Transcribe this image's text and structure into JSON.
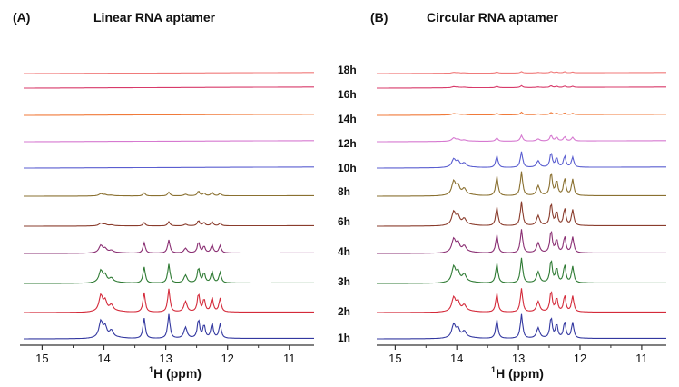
{
  "chart_data": [
    {
      "type": "line",
      "panel_label": "(A)",
      "title": "Linear RNA aptamer",
      "xlabel_sup": "1",
      "xlabel": "H (ppm)",
      "xlim": [
        15.3,
        10.6
      ],
      "xticks": [
        "15",
        "14",
        "13",
        "12",
        "11"
      ],
      "peak_positions_ppm": [
        14.05,
        13.98,
        13.88,
        13.35,
        12.95,
        12.68,
        12.47,
        12.38,
        12.25,
        12.12
      ],
      "series": [
        {
          "name": "1h",
          "color": "#3338a0",
          "peak_heights": [
            0.62,
            0.38,
            0.25,
            0.78,
            0.92,
            0.42,
            0.72,
            0.5,
            0.58,
            0.55
          ]
        },
        {
          "name": "2h",
          "color": "#d42a3a",
          "peak_heights": [
            0.6,
            0.36,
            0.22,
            0.75,
            0.88,
            0.4,
            0.7,
            0.48,
            0.55,
            0.52
          ]
        },
        {
          "name": "3h",
          "color": "#2e7a33",
          "peak_heights": [
            0.45,
            0.25,
            0.15,
            0.62,
            0.72,
            0.3,
            0.58,
            0.38,
            0.42,
            0.4
          ]
        },
        {
          "name": "4h",
          "color": "#8a2f73",
          "peak_heights": [
            0.28,
            0.14,
            0.08,
            0.4,
            0.5,
            0.18,
            0.42,
            0.25,
            0.3,
            0.28
          ]
        },
        {
          "name": "6h",
          "color": "#8a3c2c",
          "peak_heights": [
            0.1,
            0.05,
            0.03,
            0.13,
            0.16,
            0.06,
            0.2,
            0.12,
            0.15,
            0.1
          ]
        },
        {
          "name": "8h",
          "color": "#8a7030",
          "peak_heights": [
            0.08,
            0.04,
            0.02,
            0.12,
            0.14,
            0.06,
            0.18,
            0.1,
            0.13,
            0.09
          ]
        },
        {
          "name": "10h",
          "color": "#5a5ed0",
          "peak_heights": [
            0,
            0,
            0,
            0,
            0,
            0,
            0,
            0,
            0,
            0
          ]
        },
        {
          "name": "12h",
          "color": "#d679d0",
          "peak_heights": [
            0,
            0,
            0,
            0,
            0,
            0,
            0,
            0,
            0,
            0
          ]
        },
        {
          "name": "14h",
          "color": "#f07a3a",
          "peak_heights": [
            0,
            0,
            0,
            0,
            0,
            0,
            0,
            0,
            0,
            0
          ]
        },
        {
          "name": "16h",
          "color": "#d83a6a",
          "peak_heights": [
            0,
            0,
            0,
            0,
            0,
            0,
            0,
            0,
            0,
            0
          ]
        },
        {
          "name": "18h",
          "color": "#f07a7a",
          "peak_heights": [
            0,
            0,
            0,
            0,
            0,
            0,
            0,
            0,
            0,
            0
          ]
        }
      ]
    },
    {
      "type": "line",
      "panel_label": "(B)",
      "title": "Circular RNA aptamer",
      "xlabel_sup": "1",
      "xlabel": "H (ppm)",
      "xlim": [
        15.3,
        10.6
      ],
      "xticks": [
        "15",
        "14",
        "13",
        "12",
        "11"
      ],
      "peak_positions_ppm": [
        14.05,
        13.98,
        13.88,
        13.35,
        12.95,
        12.68,
        12.47,
        12.38,
        12.25,
        12.12
      ],
      "series": [
        {
          "name": "1h",
          "color": "#3338a0",
          "peak_heights": [
            0.5,
            0.3,
            0.22,
            0.72,
            0.92,
            0.4,
            0.8,
            0.52,
            0.62,
            0.6
          ]
        },
        {
          "name": "2h",
          "color": "#d42a3a",
          "peak_heights": [
            0.52,
            0.32,
            0.22,
            0.72,
            0.9,
            0.4,
            0.8,
            0.52,
            0.62,
            0.6
          ]
        },
        {
          "name": "3h",
          "color": "#2e7a33",
          "peak_heights": [
            0.58,
            0.35,
            0.28,
            0.75,
            0.95,
            0.42,
            0.88,
            0.55,
            0.68,
            0.62
          ]
        },
        {
          "name": "4h",
          "color": "#8a2f73",
          "peak_heights": [
            0.5,
            0.32,
            0.22,
            0.7,
            0.9,
            0.38,
            0.85,
            0.5,
            0.62,
            0.6
          ]
        },
        {
          "name": "6h",
          "color": "#8a3c2c",
          "peak_heights": [
            0.5,
            0.3,
            0.22,
            0.72,
            0.92,
            0.38,
            0.85,
            0.52,
            0.65,
            0.6
          ]
        },
        {
          "name": "8h",
          "color": "#8a7030",
          "peak_heights": [
            0.52,
            0.32,
            0.22,
            0.75,
            0.92,
            0.38,
            0.88,
            0.55,
            0.65,
            0.62
          ]
        },
        {
          "name": "10h",
          "color": "#5a5ed0",
          "peak_heights": [
            0.3,
            0.2,
            0.14,
            0.45,
            0.6,
            0.25,
            0.55,
            0.35,
            0.42,
            0.38
          ]
        },
        {
          "name": "12h",
          "color": "#d679d0",
          "peak_heights": [
            0.12,
            0.06,
            0.04,
            0.13,
            0.22,
            0.08,
            0.22,
            0.14,
            0.16,
            0.14
          ]
        },
        {
          "name": "14h",
          "color": "#f07a3a",
          "peak_heights": [
            0.05,
            0.03,
            0.02,
            0.06,
            0.1,
            0.03,
            0.08,
            0.05,
            0.06,
            0.05
          ]
        },
        {
          "name": "16h",
          "color": "#d83a6a",
          "peak_heights": [
            0.04,
            0.02,
            0.02,
            0.05,
            0.07,
            0.02,
            0.06,
            0.04,
            0.05,
            0.04
          ]
        },
        {
          "name": "18h",
          "color": "#f07a7a",
          "peak_heights": [
            0.03,
            0.02,
            0.01,
            0.04,
            0.05,
            0.02,
            0.05,
            0.03,
            0.04,
            0.03
          ]
        }
      ]
    }
  ]
}
